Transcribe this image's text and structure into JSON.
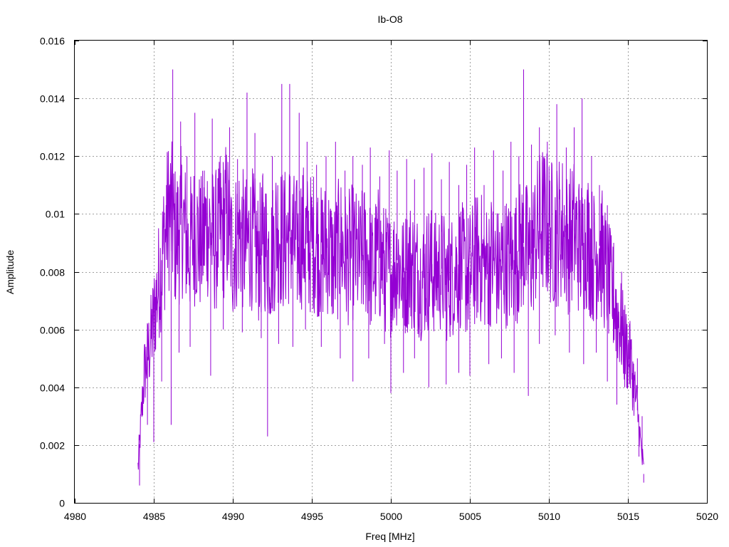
{
  "chart_data": {
    "type": "line",
    "title": "Ib-O8",
    "xlabel": "Freq [MHz]",
    "ylabel": "Amplitude",
    "xlim": [
      4980,
      5020
    ],
    "ylim": [
      0,
      0.016
    ],
    "x_ticks": [
      4980,
      4985,
      4990,
      4995,
      5000,
      5005,
      5010,
      5015,
      5020
    ],
    "x_tick_labels": [
      "4980",
      "4985",
      "4990",
      "4995",
      "5000",
      "5005",
      "5010",
      "5015",
      "5020"
    ],
    "y_ticks": [
      0,
      0.002,
      0.004,
      0.006,
      0.008,
      0.01,
      0.012,
      0.014,
      0.016
    ],
    "y_tick_labels": [
      "0",
      "0.002",
      "0.004",
      "0.006",
      "0.008",
      "0.01",
      "0.012",
      "0.014",
      "0.016"
    ],
    "grid": true,
    "series": [
      {
        "color": "#9400d3",
        "x": [
          4984.0,
          4984.4,
          4984.8,
          4985.2,
          4985.6,
          4986.0,
          4986.4,
          4986.8,
          4987.2,
          4987.6,
          4988.0,
          4988.4,
          4988.8,
          4989.2,
          4989.6,
          4990.0,
          4990.4,
          4990.8,
          4991.2,
          4991.6,
          4992.0,
          4992.4,
          4992.8,
          4993.2,
          4993.6,
          4994.0,
          4994.4,
          4994.8,
          4995.2,
          4995.6,
          4996.0,
          4996.4,
          4996.8,
          4997.2,
          4997.6,
          4998.0,
          4998.4,
          4998.8,
          4999.2,
          4999.6,
          5000.0,
          5000.4,
          5000.8,
          5001.2,
          5001.6,
          5002.0,
          5002.4,
          5002.8,
          5003.2,
          5003.6,
          5004.0,
          5004.4,
          5004.8,
          5005.2,
          5005.6,
          5006.0,
          5006.4,
          5006.8,
          5007.2,
          5007.6,
          5008.0,
          5008.4,
          5008.8,
          5009.2,
          5009.6,
          5010.0,
          5010.4,
          5010.8,
          5011.2,
          5011.6,
          5012.0,
          5012.4,
          5012.8,
          5013.2,
          5013.6,
          5014.0,
          5014.4,
          5014.8,
          5015.2,
          5015.6,
          5016.0
        ],
        "y": [
          0.0012,
          0.0045,
          0.0056,
          0.0072,
          0.0088,
          0.0102,
          0.0091,
          0.0098,
          0.0087,
          0.0094,
          0.0089,
          0.0097,
          0.009,
          0.0093,
          0.0099,
          0.0086,
          0.0095,
          0.0088,
          0.0092,
          0.0085,
          0.0091,
          0.0084,
          0.0096,
          0.009,
          0.0094,
          0.0088,
          0.0093,
          0.0089,
          0.0091,
          0.0086,
          0.0089,
          0.0082,
          0.009,
          0.0084,
          0.0087,
          0.0083,
          0.0088,
          0.008,
          0.0086,
          0.0081,
          0.0079,
          0.0084,
          0.0078,
          0.0083,
          0.008,
          0.0077,
          0.0082,
          0.0079,
          0.0081,
          0.0076,
          0.008,
          0.0083,
          0.0078,
          0.0082,
          0.0086,
          0.0081,
          0.0085,
          0.008,
          0.0084,
          0.0082,
          0.0086,
          0.009,
          0.0084,
          0.0093,
          0.0098,
          0.0095,
          0.0092,
          0.0096,
          0.009,
          0.0094,
          0.0088,
          0.0092,
          0.0085,
          0.0089,
          0.008,
          0.0072,
          0.0064,
          0.0055,
          0.0048,
          0.0032,
          0.001
        ],
        "spikes_max": [
          [
            4984.1,
            0.0016
          ],
          [
            4984.5,
            0.0048
          ],
          [
            4984.9,
            0.0065
          ],
          [
            4985.3,
            0.0082
          ],
          [
            4985.8,
            0.011
          ],
          [
            4986.2,
            0.015
          ],
          [
            4986.7,
            0.0132
          ],
          [
            4987.1,
            0.012
          ],
          [
            4987.6,
            0.0135
          ],
          [
            4988.2,
            0.0115
          ],
          [
            4988.7,
            0.0133
          ],
          [
            4989.2,
            0.012
          ],
          [
            4989.8,
            0.013
          ],
          [
            4990.3,
            0.0119
          ],
          [
            4990.9,
            0.0142
          ],
          [
            4991.4,
            0.0128
          ],
          [
            4991.9,
            0.0114
          ],
          [
            4992.5,
            0.012
          ],
          [
            4993.1,
            0.0145
          ],
          [
            4993.6,
            0.0145
          ],
          [
            4994.2,
            0.0135
          ],
          [
            4994.7,
            0.0125
          ],
          [
            4995.3,
            0.0117
          ],
          [
            4995.9,
            0.012
          ],
          [
            4996.5,
            0.0125
          ],
          [
            4997.1,
            0.0115
          ],
          [
            4997.6,
            0.012
          ],
          [
            4998.2,
            0.0117
          ],
          [
            4998.7,
            0.0123
          ],
          [
            4999.3,
            0.0113
          ],
          [
            4999.9,
            0.0122
          ],
          [
            5000.4,
            0.0115
          ],
          [
            5001.0,
            0.0119
          ],
          [
            5001.5,
            0.0112
          ],
          [
            5002.1,
            0.0116
          ],
          [
            5002.6,
            0.0121
          ],
          [
            5003.2,
            0.0112
          ],
          [
            5003.7,
            0.0118
          ],
          [
            5004.3,
            0.011
          ],
          [
            5004.8,
            0.0117
          ],
          [
            5005.3,
            0.0123
          ],
          [
            5005.9,
            0.011
          ],
          [
            5006.5,
            0.0122
          ],
          [
            5007.1,
            0.0115
          ],
          [
            5007.6,
            0.0125
          ],
          [
            5008.1,
            0.012
          ],
          [
            5008.4,
            0.015
          ],
          [
            5008.9,
            0.0124
          ],
          [
            5009.4,
            0.013
          ],
          [
            5009.9,
            0.0125
          ],
          [
            5010.5,
            0.0138
          ],
          [
            5011.1,
            0.0123
          ],
          [
            5011.6,
            0.013
          ],
          [
            5012.1,
            0.014
          ],
          [
            5012.7,
            0.012
          ],
          [
            5013.2,
            0.011
          ],
          [
            5013.7,
            0.0103
          ],
          [
            5014.1,
            0.009
          ],
          [
            5014.6,
            0.008
          ],
          [
            5015.1,
            0.0062
          ],
          [
            5015.6,
            0.005
          ],
          [
            5015.9,
            0.003
          ]
        ],
        "spikes_min": [
          [
            4984.1,
            0.0006
          ],
          [
            4984.6,
            0.0027
          ],
          [
            4985.0,
            0.0021
          ],
          [
            4985.5,
            0.0042
          ],
          [
            4986.1,
            0.0027
          ],
          [
            4986.6,
            0.0052
          ],
          [
            4987.3,
            0.0054
          ],
          [
            4988.6,
            0.0044
          ],
          [
            4989.4,
            0.006
          ],
          [
            4990.6,
            0.0059
          ],
          [
            4991.8,
            0.0057
          ],
          [
            4992.2,
            0.0023
          ],
          [
            4992.9,
            0.0055
          ],
          [
            4993.8,
            0.0054
          ],
          [
            4994.6,
            0.006
          ],
          [
            4995.6,
            0.0054
          ],
          [
            4996.8,
            0.005
          ],
          [
            4997.6,
            0.0042
          ],
          [
            4998.6,
            0.005
          ],
          [
            4999.6,
            0.0055
          ],
          [
            5000.0,
            0.0038
          ],
          [
            5000.8,
            0.0045
          ],
          [
            5001.5,
            0.005
          ],
          [
            5002.4,
            0.004
          ],
          [
            5003.5,
            0.0041
          ],
          [
            5004.3,
            0.0045
          ],
          [
            5005.0,
            0.0044
          ],
          [
            5006.2,
            0.0048
          ],
          [
            5007.0,
            0.005
          ],
          [
            5007.8,
            0.0045
          ],
          [
            5008.7,
            0.0037
          ],
          [
            5009.4,
            0.0055
          ],
          [
            5010.4,
            0.0058
          ],
          [
            5011.3,
            0.0052
          ],
          [
            5012.2,
            0.0048
          ],
          [
            5013.0,
            0.0052
          ],
          [
            5013.7,
            0.0042
          ],
          [
            5014.3,
            0.0034
          ],
          [
            5014.8,
            0.004
          ],
          [
            5015.3,
            0.0033
          ],
          [
            5015.7,
            0.0016
          ],
          [
            5016.0,
            0.0007
          ]
        ]
      }
    ]
  }
}
